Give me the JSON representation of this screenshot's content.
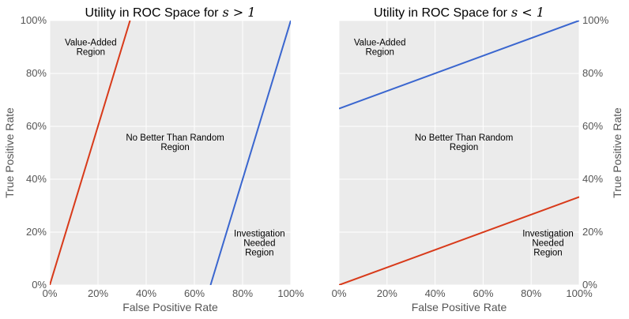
{
  "chart_data": [
    {
      "type": "line",
      "title": "Utility in ROC Space for",
      "title_math": "s > 1",
      "xlabel": "False Positive Rate",
      "ylabel": "True Positive Rate",
      "xlim": [
        0,
        1
      ],
      "ylim": [
        0,
        1
      ],
      "x_ticks": [
        "0%",
        "20%",
        "40%",
        "60%",
        "80%",
        "100%"
      ],
      "y_ticks": [
        "0%",
        "20%",
        "40%",
        "60%",
        "80%",
        "100%"
      ],
      "grid": true,
      "ylabel_side": "left",
      "series": [
        {
          "color": "#d83a1a",
          "x": [
            0,
            0.333
          ],
          "y": [
            0,
            1.0
          ]
        },
        {
          "color": "#3a66cf",
          "x": [
            0.667,
            1.0
          ],
          "y": [
            0,
            1.0
          ]
        }
      ],
      "annotations": [
        {
          "lines": [
            "Value-Added",
            "Region"
          ],
          "x": 0.17,
          "y": 0.9
        },
        {
          "lines": [
            "No Better Than Random",
            "Region"
          ],
          "x": 0.52,
          "y": 0.54
        },
        {
          "lines": [
            "Investigation",
            "Needed",
            "Region"
          ],
          "x": 0.87,
          "y": 0.16
        }
      ]
    },
    {
      "type": "line",
      "title": "Utility in ROC Space for",
      "title_math": "s < 1",
      "xlabel": "False Positive Rate",
      "ylabel": "True Positive Rate",
      "xlim": [
        0,
        1
      ],
      "ylim": [
        0,
        1
      ],
      "x_ticks": [
        "0%",
        "20%",
        "40%",
        "60%",
        "80%",
        "100%"
      ],
      "y_ticks": [
        "0%",
        "20%",
        "40%",
        "60%",
        "80%",
        "100%"
      ],
      "grid": true,
      "ylabel_side": "right",
      "series": [
        {
          "color": "#3a66cf",
          "x": [
            0,
            1.0
          ],
          "y": [
            0.667,
            1.0
          ]
        },
        {
          "color": "#d83a1a",
          "x": [
            0,
            1.0
          ],
          "y": [
            0,
            0.333
          ]
        }
      ],
      "annotations": [
        {
          "lines": [
            "Value-Added",
            "Region"
          ],
          "x": 0.17,
          "y": 0.9
        },
        {
          "lines": [
            "No Better Than Random",
            "Region"
          ],
          "x": 0.52,
          "y": 0.54
        },
        {
          "lines": [
            "Investigation",
            "Needed",
            "Region"
          ],
          "x": 0.87,
          "y": 0.16
        }
      ]
    }
  ]
}
